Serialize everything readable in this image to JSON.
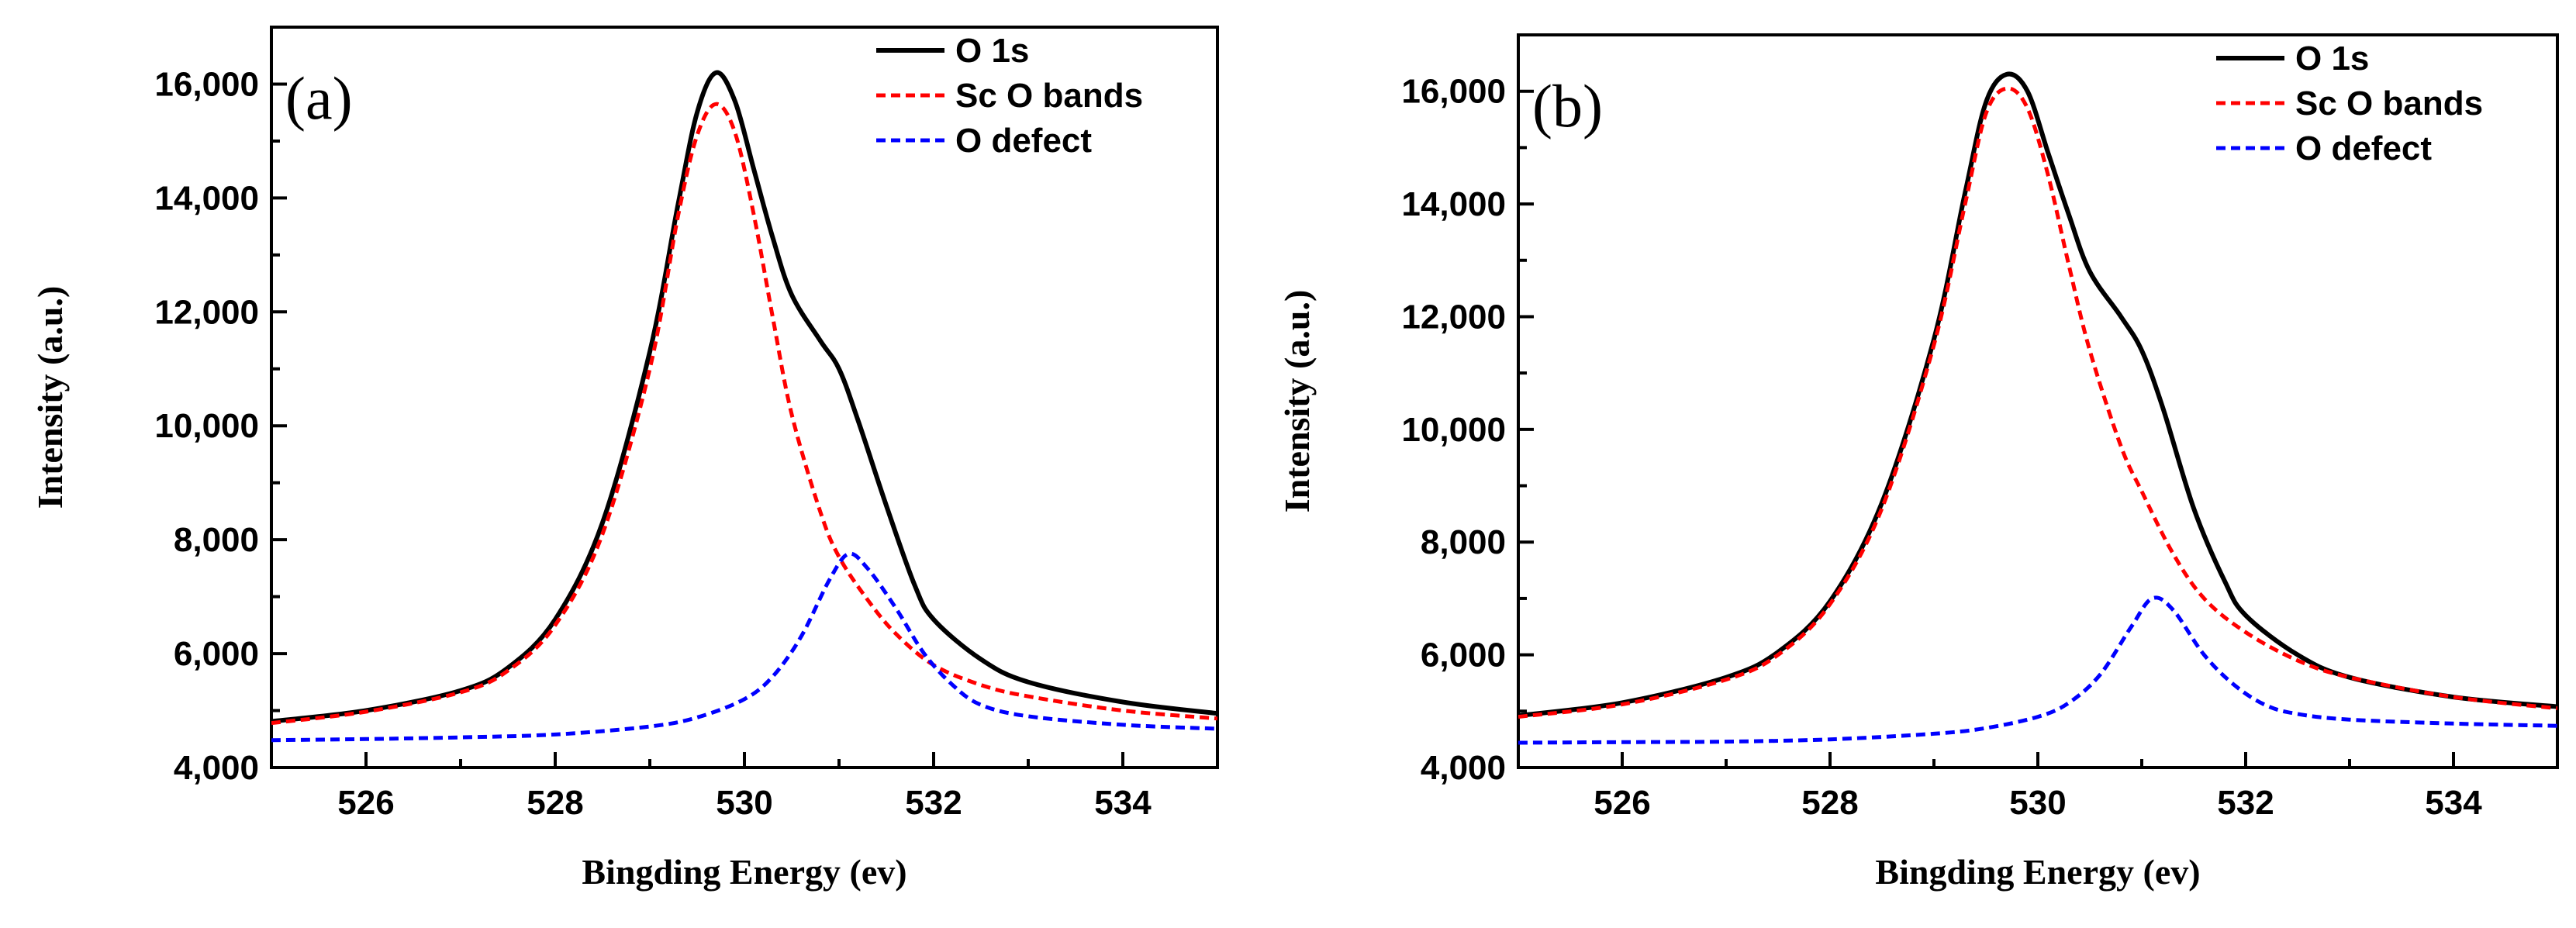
{
  "chart_data": [
    {
      "type": "line",
      "panel_label": "(a)",
      "xlabel": "Bingding Energy (ev)",
      "ylabel": "Intensity (a.u.)",
      "xlim": [
        525,
        535
      ],
      "ylim": [
        4000,
        17000
      ],
      "xticks": [
        526,
        528,
        530,
        532,
        534
      ],
      "yticks": [
        4000,
        6000,
        8000,
        10000,
        12000,
        14000,
        16000
      ],
      "xtick_labels": [
        "526",
        "528",
        "530",
        "532",
        "534"
      ],
      "ytick_labels": [
        "4,000",
        "6,000",
        "8,000",
        "10,000",
        "12,000",
        "14,000",
        "16,000"
      ],
      "legend_position": "top-right",
      "series": [
        {
          "name": "O 1s",
          "color": "#000000",
          "style": "solid",
          "x": [
            525,
            526,
            527,
            527.5,
            528,
            528.5,
            529,
            529.3,
            529.5,
            529.7,
            529.9,
            530.1,
            530.3,
            530.5,
            530.8,
            531,
            531.2,
            531.5,
            531.8,
            532,
            532.5,
            533,
            534,
            535
          ],
          "y": [
            4810,
            5000,
            5350,
            5750,
            6600,
            8300,
            11300,
            13900,
            15500,
            16200,
            15700,
            14500,
            13300,
            12300,
            11500,
            11000,
            10100,
            8600,
            7200,
            6600,
            5900,
            5500,
            5150,
            4950
          ]
        },
        {
          "name": "Sc O bands",
          "color": "#ff0000",
          "style": "dashed",
          "x": [
            525,
            526,
            527,
            527.5,
            528,
            528.5,
            529,
            529.3,
            529.5,
            529.7,
            529.9,
            530.1,
            530.3,
            530.5,
            530.8,
            531,
            531.3,
            531.6,
            532,
            532.5,
            533,
            534,
            535
          ],
          "y": [
            4780,
            4980,
            5320,
            5700,
            6500,
            8100,
            11000,
            13700,
            15100,
            15650,
            15150,
            13700,
            11900,
            10200,
            8500,
            7700,
            6950,
            6350,
            5800,
            5450,
            5250,
            5000,
            4860
          ]
        },
        {
          "name": "O defect",
          "color": "#0000ff",
          "style": "dashed",
          "x": [
            525,
            526,
            527,
            528,
            529,
            529.5,
            530,
            530.3,
            530.6,
            530.9,
            531.1,
            531.3,
            531.6,
            531.9,
            532.2,
            532.5,
            533,
            534,
            535
          ],
          "y": [
            4480,
            4500,
            4530,
            4580,
            4720,
            4880,
            5200,
            5600,
            6300,
            7300,
            7750,
            7500,
            6800,
            6000,
            5450,
            5100,
            4900,
            4750,
            4680
          ]
        }
      ]
    },
    {
      "type": "line",
      "panel_label": "(b)",
      "xlabel": "Bingding Energy (ev)",
      "ylabel": "Intensity (a.u.)",
      "xlim": [
        525,
        535
      ],
      "ylim": [
        4000,
        17000
      ],
      "xticks": [
        526,
        528,
        530,
        532,
        534
      ],
      "yticks": [
        4000,
        6000,
        8000,
        10000,
        12000,
        14000,
        16000
      ],
      "xtick_labels": [
        "526",
        "528",
        "530",
        "532",
        "534"
      ],
      "ytick_labels": [
        "4,000",
        "6,000",
        "8,000",
        "10,000",
        "12,000",
        "14,000",
        "16,000"
      ],
      "legend_position": "top-right",
      "series": [
        {
          "name": "O 1s",
          "color": "#000000",
          "style": "solid",
          "x": [
            525,
            526,
            527,
            527.5,
            528,
            528.5,
            529,
            529.3,
            529.5,
            529.7,
            529.9,
            530.1,
            530.3,
            530.5,
            530.8,
            531,
            531.2,
            531.5,
            531.8,
            532,
            532.5,
            533,
            534,
            535
          ],
          "y": [
            4920,
            5150,
            5600,
            6050,
            6950,
            8700,
            11600,
            14200,
            15800,
            16300,
            16000,
            14900,
            13800,
            12800,
            12000,
            11400,
            10400,
            8600,
            7300,
            6700,
            6000,
            5600,
            5250,
            5080
          ]
        },
        {
          "name": "Sc O bands",
          "color": "#ff0000",
          "style": "dashed",
          "x": [
            525,
            526,
            527,
            527.5,
            528,
            528.5,
            529,
            529.3,
            529.5,
            529.7,
            529.9,
            530.1,
            530.3,
            530.5,
            530.8,
            531,
            531.3,
            531.6,
            532,
            532.5,
            533,
            534,
            535
          ],
          "y": [
            4900,
            5120,
            5560,
            6000,
            6900,
            8600,
            11500,
            14000,
            15600,
            16050,
            15700,
            14500,
            12900,
            11400,
            9700,
            8900,
            7800,
            7000,
            6400,
            5900,
            5600,
            5250,
            5050
          ]
        },
        {
          "name": "O defect",
          "color": "#0000ff",
          "style": "dashed",
          "x": [
            525,
            526,
            527,
            528,
            529,
            529.5,
            530,
            530.3,
            530.6,
            530.9,
            531.1,
            531.3,
            531.6,
            531.9,
            532.2,
            532.5,
            533,
            534,
            535
          ],
          "y": [
            4440,
            4450,
            4460,
            4500,
            4600,
            4700,
            4900,
            5150,
            5650,
            6500,
            7000,
            6800,
            6000,
            5450,
            5100,
            4950,
            4850,
            4780,
            4740
          ]
        }
      ]
    }
  ]
}
